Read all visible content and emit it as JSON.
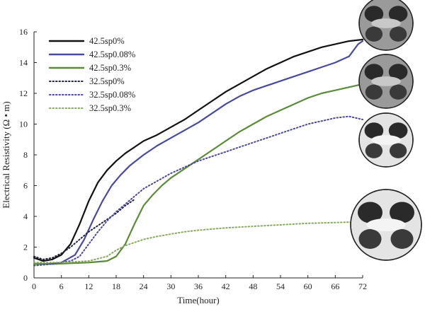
{
  "chart_data": {
    "type": "line",
    "xlabel": "Time(hour)",
    "ylabel": "Electrical Resistivity (Ω • m)",
    "xlim": [
      0,
      72
    ],
    "ylim": [
      0,
      16
    ],
    "xticks": [
      "0",
      "6",
      "12",
      "18",
      "24",
      "30",
      "36",
      "42",
      "48",
      "54",
      "60",
      "66",
      "72"
    ],
    "yticks": [
      "0",
      "2",
      "4",
      "6",
      "8",
      "10",
      "12",
      "14",
      "16"
    ],
    "grid": false,
    "legend_position": "top-left",
    "series": [
      {
        "name": "42.5sp0%",
        "color": "#111111",
        "dash": "solid",
        "points": [
          [
            0,
            1.3
          ],
          [
            2,
            1.1
          ],
          [
            4,
            1.2
          ],
          [
            6,
            1.5
          ],
          [
            8,
            2.2
          ],
          [
            10,
            3.5
          ],
          [
            12,
            5.0
          ],
          [
            14,
            6.2
          ],
          [
            16,
            7.0
          ],
          [
            18,
            7.6
          ],
          [
            20,
            8.1
          ],
          [
            22,
            8.5
          ],
          [
            24,
            8.9
          ],
          [
            27,
            9.3
          ],
          [
            30,
            9.8
          ],
          [
            33,
            10.3
          ],
          [
            36,
            10.9
          ],
          [
            39,
            11.5
          ],
          [
            42,
            12.1
          ],
          [
            45,
            12.6
          ],
          [
            48,
            13.1
          ],
          [
            51,
            13.6
          ],
          [
            54,
            14.0
          ],
          [
            57,
            14.4
          ],
          [
            60,
            14.7
          ],
          [
            63,
            15.0
          ],
          [
            66,
            15.2
          ],
          [
            69,
            15.4
          ],
          [
            72,
            15.5
          ]
        ]
      },
      {
        "name": "42.5sp0.08%",
        "color": "#4a4a9a",
        "dash": "solid",
        "points": [
          [
            0,
            0.9
          ],
          [
            3,
            0.9
          ],
          [
            6,
            1.0
          ],
          [
            9,
            1.5
          ],
          [
            11,
            2.5
          ],
          [
            13,
            3.8
          ],
          [
            15,
            5.0
          ],
          [
            17,
            6.0
          ],
          [
            19,
            6.7
          ],
          [
            21,
            7.3
          ],
          [
            24,
            8.0
          ],
          [
            27,
            8.6
          ],
          [
            30,
            9.1
          ],
          [
            33,
            9.6
          ],
          [
            36,
            10.1
          ],
          [
            39,
            10.7
          ],
          [
            42,
            11.3
          ],
          [
            45,
            11.8
          ],
          [
            48,
            12.2
          ],
          [
            51,
            12.5
          ],
          [
            54,
            12.8
          ],
          [
            57,
            13.1
          ],
          [
            60,
            13.4
          ],
          [
            63,
            13.7
          ],
          [
            66,
            14.0
          ],
          [
            69,
            14.4
          ],
          [
            71,
            15.2
          ],
          [
            72,
            15.4
          ]
        ]
      },
      {
        "name": "42.5sp0.3%",
        "color": "#5a8a3a",
        "dash": "solid",
        "points": [
          [
            0,
            0.9
          ],
          [
            4,
            0.9
          ],
          [
            8,
            0.95
          ],
          [
            12,
            1.0
          ],
          [
            16,
            1.1
          ],
          [
            18,
            1.4
          ],
          [
            20,
            2.2
          ],
          [
            22,
            3.5
          ],
          [
            24,
            4.7
          ],
          [
            26,
            5.4
          ],
          [
            28,
            6.0
          ],
          [
            30,
            6.5
          ],
          [
            33,
            7.1
          ],
          [
            36,
            7.7
          ],
          [
            39,
            8.3
          ],
          [
            42,
            8.9
          ],
          [
            45,
            9.5
          ],
          [
            48,
            10.0
          ],
          [
            51,
            10.5
          ],
          [
            54,
            10.9
          ],
          [
            57,
            11.3
          ],
          [
            60,
            11.7
          ],
          [
            63,
            12.0
          ],
          [
            66,
            12.2
          ],
          [
            69,
            12.4
          ],
          [
            72,
            12.6
          ]
        ]
      },
      {
        "name": "32.5sp0%",
        "color": "#222244",
        "dash": "dot",
        "points": [
          [
            0,
            1.4
          ],
          [
            2,
            1.2
          ],
          [
            4,
            1.3
          ],
          [
            6,
            1.6
          ],
          [
            8,
            2.0
          ],
          [
            10,
            2.5
          ],
          [
            12,
            3.0
          ],
          [
            14,
            3.4
          ],
          [
            16,
            3.8
          ],
          [
            18,
            4.2
          ],
          [
            20,
            4.7
          ],
          [
            22,
            5.1
          ]
        ]
      },
      {
        "name": "32.5sp0.08%",
        "color": "#4a4a9a",
        "dash": "dot",
        "points": [
          [
            0,
            0.8
          ],
          [
            4,
            0.9
          ],
          [
            8,
            1.1
          ],
          [
            10,
            1.4
          ],
          [
            12,
            2.2
          ],
          [
            14,
            3.0
          ],
          [
            16,
            3.7
          ],
          [
            18,
            4.3
          ],
          [
            20,
            4.8
          ],
          [
            22,
            5.3
          ],
          [
            24,
            5.8
          ],
          [
            27,
            6.3
          ],
          [
            30,
            6.8
          ],
          [
            33,
            7.2
          ],
          [
            36,
            7.6
          ],
          [
            39,
            7.9
          ],
          [
            42,
            8.2
          ],
          [
            45,
            8.5
          ],
          [
            48,
            8.8
          ],
          [
            51,
            9.1
          ],
          [
            54,
            9.4
          ],
          [
            57,
            9.7
          ],
          [
            60,
            10.0
          ],
          [
            63,
            10.2
          ],
          [
            66,
            10.4
          ],
          [
            69,
            10.5
          ],
          [
            72,
            10.3
          ]
        ]
      },
      {
        "name": "32.5sp0.3%",
        "color": "#8aa860",
        "dash": "dot",
        "points": [
          [
            0,
            1.0
          ],
          [
            6,
            1.0
          ],
          [
            12,
            1.1
          ],
          [
            16,
            1.4
          ],
          [
            18,
            1.8
          ],
          [
            20,
            2.1
          ],
          [
            22,
            2.3
          ],
          [
            24,
            2.5
          ],
          [
            27,
            2.7
          ],
          [
            30,
            2.85
          ],
          [
            33,
            3.0
          ],
          [
            36,
            3.1
          ],
          [
            42,
            3.25
          ],
          [
            48,
            3.35
          ],
          [
            54,
            3.45
          ],
          [
            60,
            3.55
          ],
          [
            66,
            3.6
          ],
          [
            72,
            3.65
          ]
        ]
      }
    ],
    "side_images": [
      {
        "name": "cross-section-1",
        "tone": "dark"
      },
      {
        "name": "cross-section-2",
        "tone": "dark"
      },
      {
        "name": "cross-section-3",
        "tone": "light"
      },
      {
        "name": "cross-section-4",
        "tone": "light"
      }
    ]
  }
}
